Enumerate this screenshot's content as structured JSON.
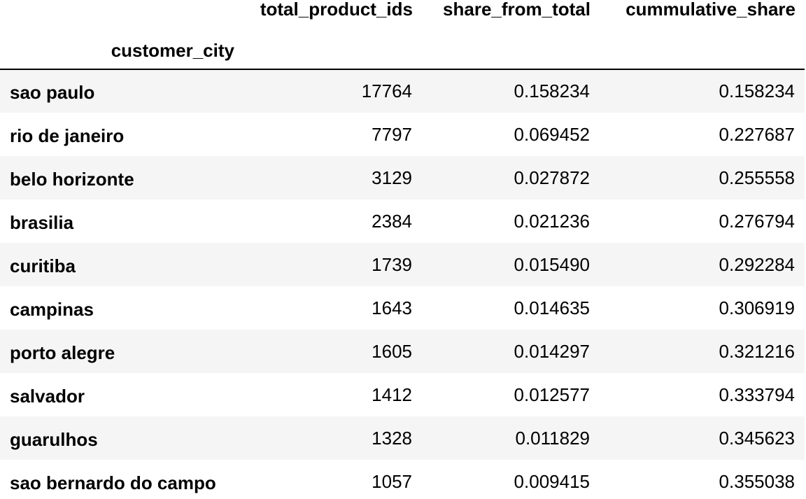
{
  "table": {
    "columns": [
      "total_product_ids",
      "share_from_total",
      "cummulative_share"
    ],
    "index_name": "customer_city",
    "rows": [
      {
        "city": "sao paulo",
        "total_product_ids": "17764",
        "share_from_total": "0.158234",
        "cummulative_share": "0.158234"
      },
      {
        "city": "rio de janeiro",
        "total_product_ids": "7797",
        "share_from_total": "0.069452",
        "cummulative_share": "0.227687"
      },
      {
        "city": "belo horizonte",
        "total_product_ids": "3129",
        "share_from_total": "0.027872",
        "cummulative_share": "0.255558"
      },
      {
        "city": "brasilia",
        "total_product_ids": "2384",
        "share_from_total": "0.021236",
        "cummulative_share": "0.276794"
      },
      {
        "city": "curitiba",
        "total_product_ids": "1739",
        "share_from_total": "0.015490",
        "cummulative_share": "0.292284"
      },
      {
        "city": "campinas",
        "total_product_ids": "1643",
        "share_from_total": "0.014635",
        "cummulative_share": "0.306919"
      },
      {
        "city": "porto alegre",
        "total_product_ids": "1605",
        "share_from_total": "0.014297",
        "cummulative_share": "0.321216"
      },
      {
        "city": "salvador",
        "total_product_ids": "1412",
        "share_from_total": "0.012577",
        "cummulative_share": "0.333794"
      },
      {
        "city": "guarulhos",
        "total_product_ids": "1328",
        "share_from_total": "0.011829",
        "cummulative_share": "0.345623"
      },
      {
        "city": "sao bernardo do campo",
        "total_product_ids": "1057",
        "share_from_total": "0.009415",
        "cummulative_share": "0.355038"
      }
    ]
  }
}
